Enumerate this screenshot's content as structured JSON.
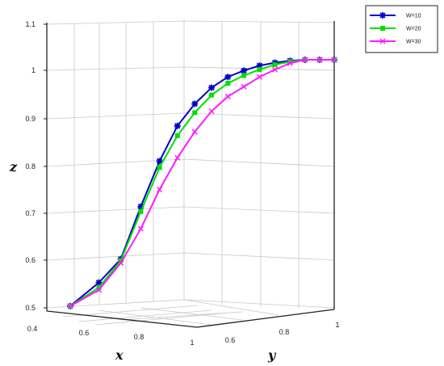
{
  "chart_data": {
    "type": "line",
    "zlabel": "z",
    "xlabel": "x",
    "ylabel": "y",
    "z_ticks": [
      "0.5",
      "0.6",
      "0.7",
      "0.8",
      "0.9",
      "1",
      "1.1"
    ],
    "x_ticks": [
      "0.4",
      "0.6",
      "0.8",
      "1"
    ],
    "y_ticks": [
      "0.6",
      "0.8",
      "1"
    ],
    "zlim": [
      0.5,
      1.1
    ],
    "grid": true,
    "legend_position": "top-right",
    "series": [
      {
        "name": "W=10",
        "color": "#0000cc",
        "marker": "star",
        "points": [
          [
            0.45,
            0.497
          ],
          [
            0.48,
            0.545
          ],
          [
            0.5,
            0.593
          ],
          [
            0.55,
            0.7
          ],
          [
            0.6,
            0.793
          ],
          [
            0.65,
            0.865
          ],
          [
            0.7,
            0.91
          ],
          [
            0.75,
            0.943
          ],
          [
            0.8,
            0.965
          ],
          [
            0.85,
            0.978
          ],
          [
            0.9,
            0.988
          ],
          [
            0.95,
            0.994
          ],
          [
            0.98,
            0.998
          ],
          [
            1.0,
            1.0
          ],
          [
            1.0,
            1.0
          ],
          [
            1.0,
            1.0
          ]
        ]
      },
      {
        "name": "W=20",
        "color": "#00e000",
        "marker": "square",
        "points": [
          [
            0.45,
            0.497
          ],
          [
            0.48,
            0.535
          ],
          [
            0.5,
            0.59
          ],
          [
            0.55,
            0.69
          ],
          [
            0.6,
            0.78
          ],
          [
            0.65,
            0.845
          ],
          [
            0.7,
            0.892
          ],
          [
            0.75,
            0.928
          ],
          [
            0.8,
            0.952
          ],
          [
            0.85,
            0.968
          ],
          [
            0.9,
            0.98
          ],
          [
            0.95,
            0.99
          ],
          [
            0.98,
            0.996
          ],
          [
            1.0,
            1.0
          ],
          [
            1.0,
            1.0
          ],
          [
            1.0,
            1.0
          ]
        ]
      },
      {
        "name": "W=30",
        "color": "#ff1aff",
        "marker": "x",
        "points": [
          [
            0.45,
            0.497
          ],
          [
            0.48,
            0.53
          ],
          [
            0.5,
            0.585
          ],
          [
            0.55,
            0.655
          ],
          [
            0.6,
            0.735
          ],
          [
            0.65,
            0.8
          ],
          [
            0.7,
            0.853
          ],
          [
            0.75,
            0.895
          ],
          [
            0.8,
            0.925
          ],
          [
            0.85,
            0.945
          ],
          [
            0.9,
            0.965
          ],
          [
            0.95,
            0.98
          ],
          [
            0.98,
            0.993
          ],
          [
            1.0,
            1.0
          ],
          [
            1.0,
            1.0
          ],
          [
            1.0,
            1.0
          ]
        ]
      }
    ]
  }
}
